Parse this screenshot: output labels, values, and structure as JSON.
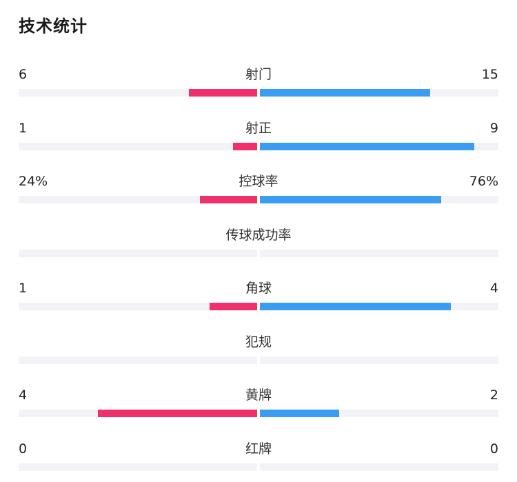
{
  "title": "技术统计",
  "colors": {
    "home": "#f0306a",
    "away": "#3a9cf2",
    "track": "#f2f3f6"
  },
  "chart_data": {
    "type": "bar",
    "categories": [
      "射门",
      "射正",
      "控球率",
      "传球成功率",
      "角球",
      "犯规",
      "黄牌",
      "红牌"
    ],
    "series": [
      {
        "values": [
          6,
          1,
          24,
          null,
          1,
          null,
          4,
          0
        ]
      },
      {
        "values": [
          15,
          9,
          76,
          null,
          4,
          null,
          2,
          0
        ]
      }
    ]
  },
  "rows": [
    {
      "label": "射门",
      "left": "6",
      "right": "15",
      "home_frac": 0.286,
      "away_frac": 0.714
    },
    {
      "label": "射正",
      "left": "1",
      "right": "9",
      "home_frac": 0.1,
      "away_frac": 0.9
    },
    {
      "label": "控球率",
      "left": "24%",
      "right": "76%",
      "home_frac": 0.24,
      "away_frac": 0.76
    },
    {
      "label": "传球成功率",
      "left": "",
      "right": "",
      "home_frac": 0,
      "away_frac": 0
    },
    {
      "label": "角球",
      "left": "1",
      "right": "4",
      "home_frac": 0.2,
      "away_frac": 0.8
    },
    {
      "label": "犯规",
      "left": "",
      "right": "",
      "home_frac": 0,
      "away_frac": 0
    },
    {
      "label": "黄牌",
      "left": "4",
      "right": "2",
      "home_frac": 0.667,
      "away_frac": 0.333
    },
    {
      "label": "红牌",
      "left": "0",
      "right": "0",
      "home_frac": 0,
      "away_frac": 0
    }
  ]
}
